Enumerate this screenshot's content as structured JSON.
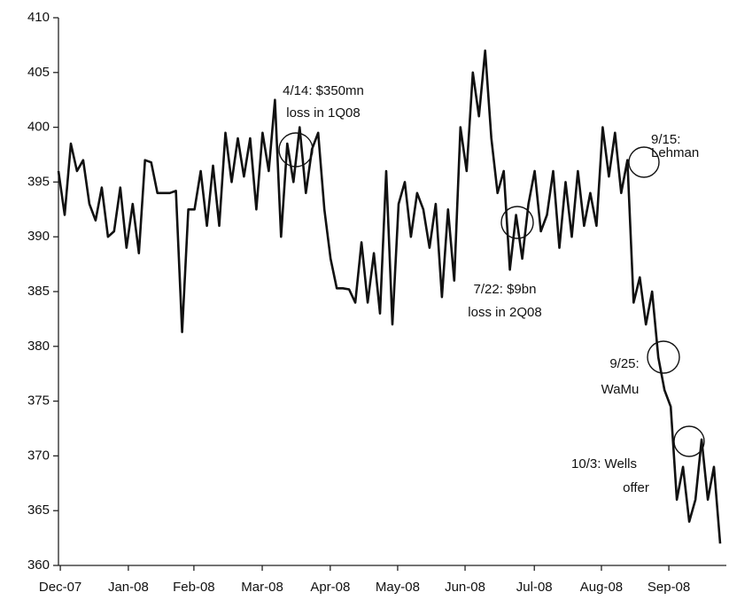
{
  "chart_data": {
    "type": "line",
    "x": [
      0,
      2,
      4,
      6,
      8,
      10,
      12,
      14,
      16,
      18,
      20,
      22,
      24,
      26,
      28,
      30,
      32,
      34,
      36,
      38,
      40,
      42,
      44,
      46,
      48,
      50,
      52,
      54,
      56,
      58,
      60,
      62,
      64,
      66,
      68,
      70,
      72,
      74,
      76,
      78,
      80,
      82,
      84,
      86,
      88,
      90,
      92,
      94,
      96,
      98,
      100,
      102,
      104,
      106,
      108,
      110,
      112,
      114,
      116,
      118,
      120,
      122,
      124,
      126,
      128,
      130,
      132,
      134,
      136,
      138,
      140,
      142,
      144,
      146,
      148,
      150,
      152,
      154,
      156,
      158,
      160,
      162,
      164,
      166,
      168,
      170,
      172,
      174,
      176,
      178,
      180,
      182,
      184,
      186,
      188,
      190,
      192,
      194,
      196,
      198,
      200,
      202,
      204,
      206,
      208,
      210,
      212,
      214
    ],
    "series": [
      {
        "color": "#111111",
        "values": [
          396,
          392,
          398.5,
          396,
          397,
          393,
          391.5,
          394.5,
          390,
          390.5,
          394.5,
          389,
          393,
          388.5,
          397,
          396.8,
          394,
          394,
          394,
          394.2,
          381.3,
          392.5,
          392.5,
          396,
          391,
          396.5,
          391,
          399.5,
          395,
          399,
          395.5,
          399,
          392.5,
          399.5,
          396,
          402.5,
          390,
          398.5,
          395,
          400,
          394,
          398,
          399.5,
          392.5,
          388,
          385.3,
          385.3,
          385.2,
          384,
          389.5,
          384,
          388.5,
          383,
          396,
          382,
          393,
          395,
          390,
          394,
          392.5,
          389,
          393,
          384.5,
          392.5,
          386,
          400,
          396,
          405,
          401,
          407,
          399,
          394,
          396,
          387,
          392,
          388,
          393,
          396,
          390.5,
          392,
          396,
          389,
          395,
          390,
          396,
          391,
          394,
          391,
          400,
          395.5,
          399.5,
          394,
          397,
          384,
          386.3,
          382,
          385,
          379,
          376,
          374.5,
          366,
          369,
          364,
          366,
          371.5,
          366,
          369,
          362
        ]
      }
    ],
    "xlim": [
      0,
      216
    ],
    "xticks": [
      {
        "value": 0.6,
        "label": "Dec-07"
      },
      {
        "value": 22.6,
        "label": "Jan-08"
      },
      {
        "value": 43.8,
        "label": "Feb-08"
      },
      {
        "value": 65.9,
        "label": "Mar-08"
      },
      {
        "value": 87.9,
        "label": "Apr-08"
      },
      {
        "value": 109.7,
        "label": "May-08"
      },
      {
        "value": 131.5,
        "label": "Jun-08"
      },
      {
        "value": 153.9,
        "label": "Jul-08"
      },
      {
        "value": 175.6,
        "label": "Aug-08"
      },
      {
        "value": 197.4,
        "label": "Sep-08"
      }
    ],
    "ylim": [
      360,
      410
    ],
    "yticks": [
      360,
      365,
      370,
      375,
      380,
      385,
      390,
      395,
      400,
      405,
      410
    ],
    "annotations": [
      {
        "lines": [
          "4/14: $350mn",
          "loss in 1Q08"
        ]
      },
      {
        "lines": [
          "7/22: $9bn",
          "loss in 2Q08"
        ]
      },
      {
        "lines": [
          "9/15:",
          "Lehman"
        ]
      },
      {
        "lines": [
          "9/25:",
          "WaMu"
        ]
      },
      {
        "lines": [
          "10/3:  Wells",
          "offer"
        ]
      }
    ]
  }
}
